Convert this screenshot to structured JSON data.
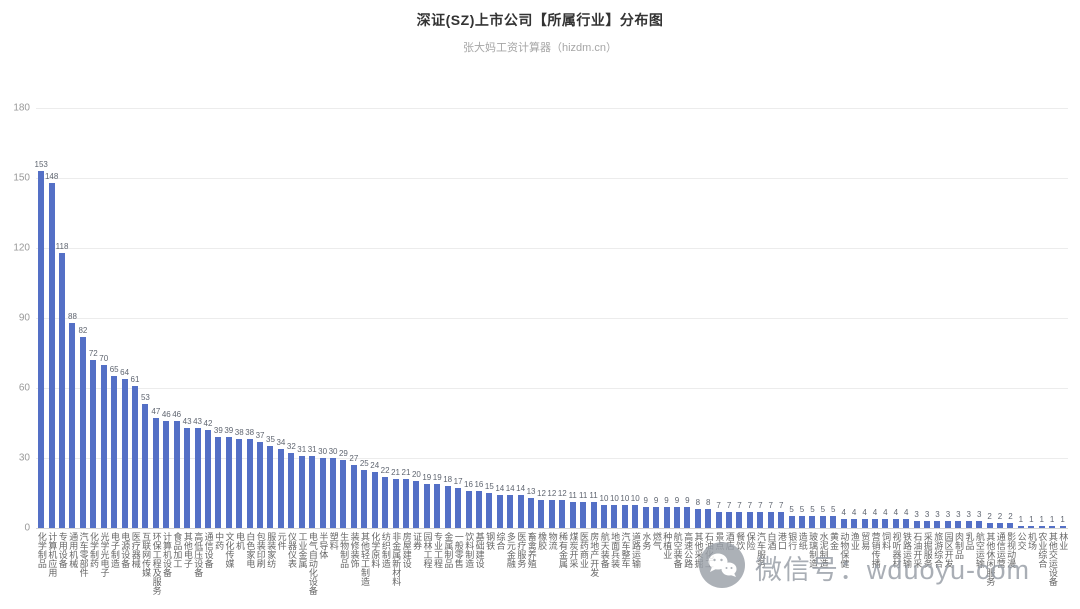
{
  "header": {
    "title": "深证(SZ)上市公司【所属行业】分布图",
    "subtitle": "张大妈工资计算器（hizdm.cn）"
  },
  "watermark": {
    "text": "微信号：wduoyu-com"
  },
  "chart_data": {
    "type": "bar",
    "title": "深证(SZ)上市公司【所属行业】分布图",
    "subtitle": "张大妈工资计算器（hizdm.cn）",
    "bar_color": "#5470c6",
    "grid": true,
    "legend": false,
    "xlabel": "",
    "ylabel": "",
    "ylim": [
      0,
      180
    ],
    "yticks": [
      0,
      30,
      60,
      90,
      120,
      150,
      180
    ],
    "categories": [
      "化学制品",
      "计算机应用",
      "专用设备",
      "通用机械",
      "汽车零部件",
      "化学制药",
      "光学光电子",
      "电子制造",
      "电源设备",
      "医疗器械",
      "互联网传媒",
      "环保工程及服务",
      "计算机设备",
      "食品加工",
      "其他电子",
      "高低压设备",
      "通信设备",
      "中药",
      "文化传媒",
      "电机",
      "白色家电",
      "包装印刷",
      "服装家纺",
      "元件",
      "仪器仪表",
      "工业金属",
      "电气自动化设备",
      "半导体",
      "塑料",
      "生物制品",
      "装修装饰",
      "其他轻工制造",
      "化学原料",
      "纺织制造",
      "非金属新材料",
      "房屋建设",
      "证券",
      "园林工程",
      "专业工程",
      "金属制品",
      "一般零售",
      "饮料制造",
      "基础建设",
      "钢铁",
      "综合",
      "多元金融",
      "医疗服务",
      "畜禽养殖",
      "橡胶",
      "物流",
      "稀有金属",
      "煤炭开采",
      "医药商业",
      "房地产开发",
      "航天装备",
      "地面兵装",
      "汽车整车",
      "道路运输",
      "水务",
      "燃气",
      "种植业",
      "航空装备",
      "高速公路",
      "其他采掘",
      "石油化工",
      "景点",
      "酒店",
      "餐饮",
      "保险",
      "汽车服务",
      "白酒",
      "港口",
      "银行",
      "造纸",
      "玻璃制造",
      "水泥制造",
      "黄金",
      "动物保健",
      "渔业",
      "贸易",
      "营销传播",
      "饲料",
      "视听器材",
      "铁路运输",
      "石油开采",
      "采掘服务",
      "旅游综合",
      "园区开发",
      "肉制品",
      "乳品",
      "航空运输",
      "其他休闲服务",
      "通信运营",
      "影视动漫",
      "公交",
      "机场",
      "农业综合",
      "其他交运设备",
      "林业"
    ],
    "values": [
      153,
      148,
      118,
      88,
      82,
      72,
      70,
      65,
      64,
      61,
      53,
      47,
      46,
      46,
      43,
      43,
      42,
      39,
      39,
      38,
      38,
      37,
      35,
      34,
      32,
      31,
      31,
      30,
      30,
      29,
      27,
      25,
      24,
      22,
      21,
      21,
      20,
      19,
      19,
      18,
      17,
      16,
      16,
      15,
      14,
      14,
      14,
      13,
      12,
      12,
      12,
      11,
      11,
      11,
      10,
      10,
      10,
      10,
      9,
      9,
      9,
      9,
      9,
      8,
      8,
      7,
      7,
      7,
      7,
      7,
      7,
      7,
      5,
      5,
      5,
      5,
      5,
      4,
      4,
      4,
      4,
      4,
      4,
      4,
      3,
      3,
      3,
      3,
      3,
      3,
      3,
      2,
      2,
      2,
      1,
      1,
      1,
      1,
      1
    ]
  }
}
